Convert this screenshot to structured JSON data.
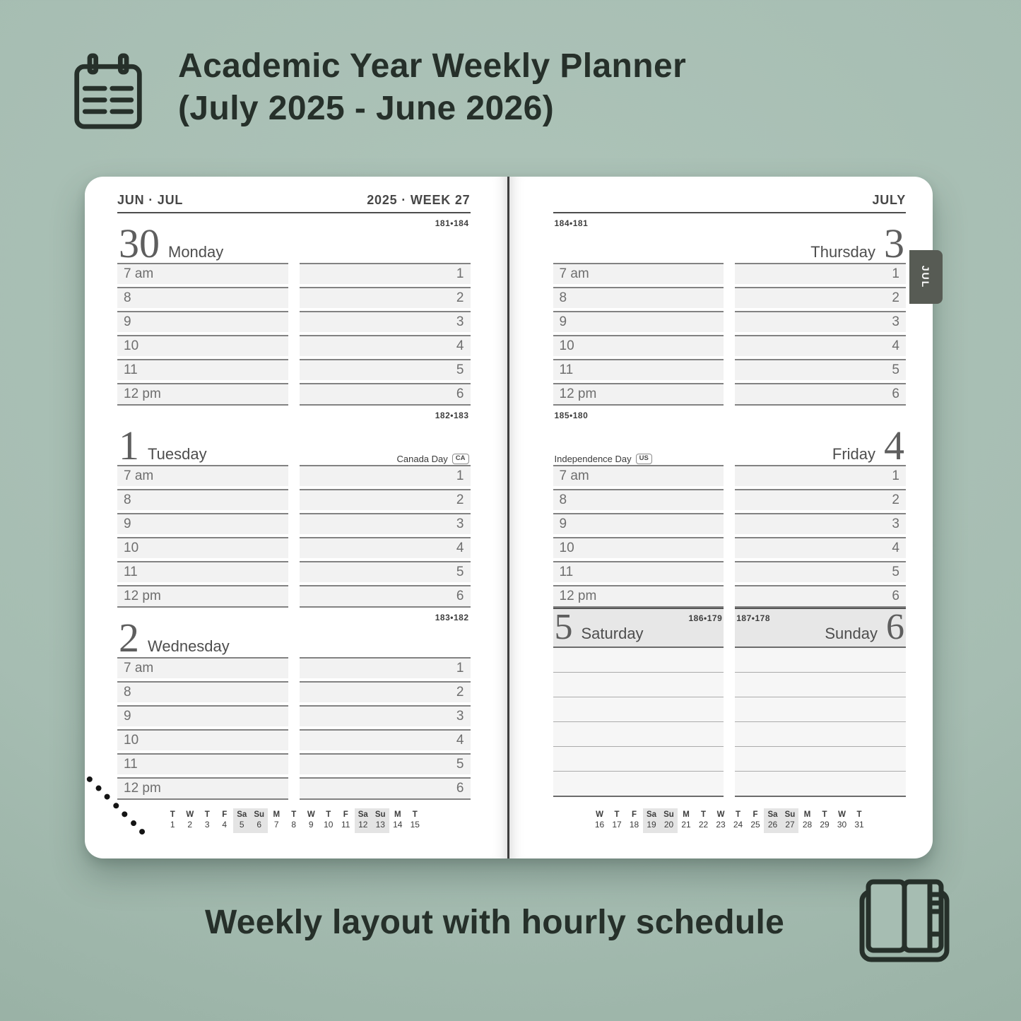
{
  "header": {
    "title_line1": "Academic Year Weekly Planner",
    "title_line2": "(July 2025 - June 2026)"
  },
  "footer": {
    "caption": "Weekly layout with hourly schedule"
  },
  "icons": {
    "hero": "calendar-notepad-icon",
    "footer": "open-planner-icon"
  },
  "colors": {
    "background": "#a6bdb2",
    "bg-light": "#aec4b9",
    "page": "#ffffff",
    "ink": "#26302a",
    "tab": "#575b54",
    "slot_fill": "#f2f2f2",
    "weekend_fill": "#e7e7e7",
    "highlight": "#e4e4e4"
  },
  "planner": {
    "tab_label": "JUL",
    "time_labels": [
      "7 am",
      "8",
      "9",
      "10",
      "11",
      "12 pm"
    ],
    "afternoon_labels": [
      "1",
      "2",
      "3",
      "4",
      "5",
      "6"
    ],
    "left_page": {
      "header_left": "JUN · JUL",
      "header_right": "2025 · WEEK 27",
      "days": [
        {
          "number": "30",
          "name": "Monday",
          "ordinal": "181•184"
        },
        {
          "number": "1",
          "name": "Tuesday",
          "ordinal": "182•183",
          "holiday": {
            "label": "Canada Day",
            "badge": "CA"
          }
        },
        {
          "number": "2",
          "name": "Wednesday",
          "ordinal": "183•182"
        }
      ],
      "mini_calendar": {
        "letters": [
          "T",
          "W",
          "T",
          "F",
          "Sa",
          "Su",
          "M",
          "T",
          "W",
          "T",
          "F",
          "Sa",
          "Su",
          "M",
          "T"
        ],
        "dates": [
          "1",
          "2",
          "3",
          "4",
          "5",
          "6",
          "7",
          "8",
          "9",
          "10",
          "11",
          "12",
          "13",
          "14",
          "15"
        ],
        "highlights": [
          4,
          5,
          11,
          12
        ]
      }
    },
    "right_page": {
      "header_right": "JULY",
      "days": [
        {
          "number": "3",
          "name": "Thursday",
          "ordinal": "184•181"
        },
        {
          "number": "4",
          "name": "Friday",
          "ordinal": "185•180",
          "holiday": {
            "label": "Independence Day",
            "badge": "US"
          }
        }
      ],
      "weekend": {
        "note_rows": 6,
        "saturday": {
          "number": "5",
          "name": "Saturday",
          "ordinal": "186•179"
        },
        "sunday": {
          "number": "6",
          "name": "Sunday",
          "ordinal": "187•178"
        }
      },
      "mini_calendar": {
        "letters": [
          "W",
          "T",
          "F",
          "Sa",
          "Su",
          "M",
          "T",
          "W",
          "T",
          "F",
          "Sa",
          "Su",
          "M",
          "T",
          "W",
          "T"
        ],
        "dates": [
          "16",
          "17",
          "18",
          "19",
          "20",
          "21",
          "22",
          "23",
          "24",
          "25",
          "26",
          "27",
          "28",
          "29",
          "30",
          "31"
        ],
        "highlights": [
          3,
          4,
          10,
          11
        ]
      }
    }
  }
}
